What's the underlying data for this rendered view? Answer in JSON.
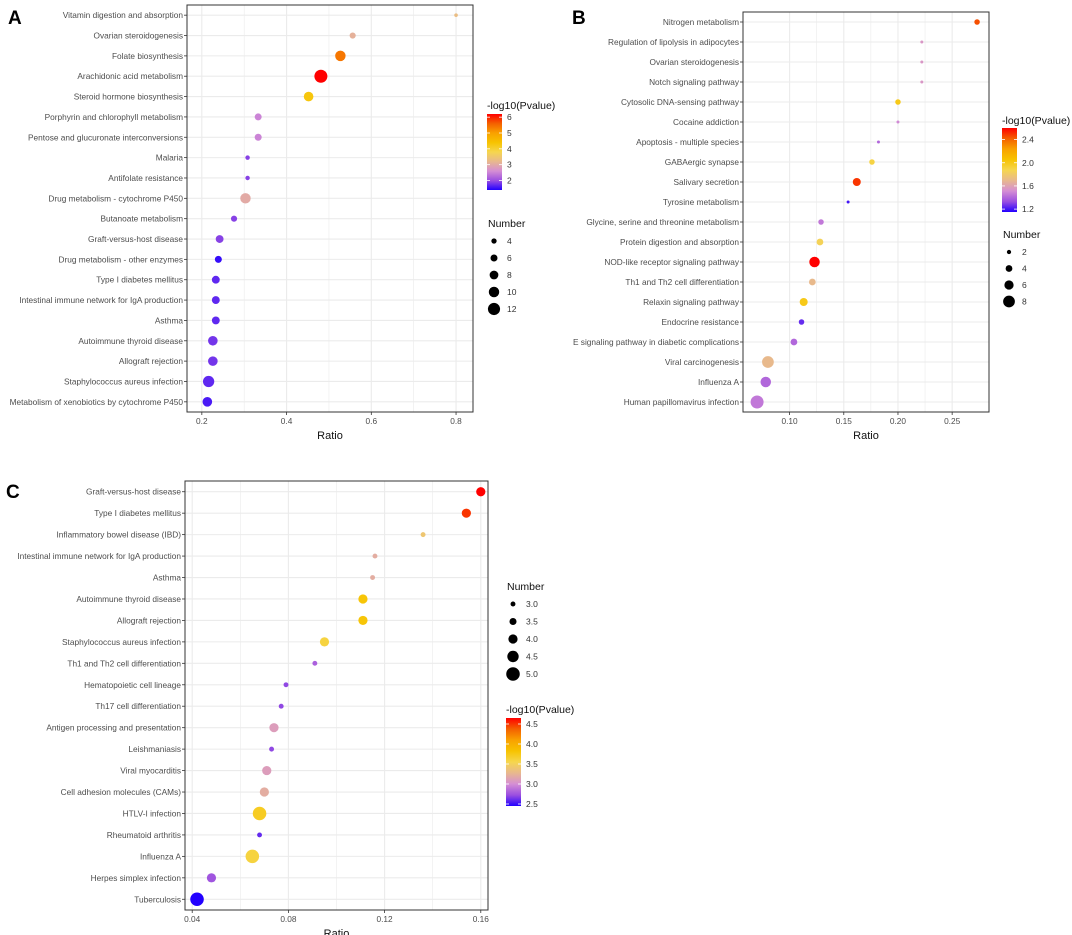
{
  "colors": {
    "scale": [
      "#2200ff",
      "#9b4fe0",
      "#d58ed4",
      "#e8b88e",
      "#f6d64e",
      "#f7c300",
      "#f9a100",
      "#f46000",
      "#ff0000"
    ],
    "grid": "#ebebeb",
    "frame": "#333333"
  },
  "chart_data": [
    {
      "panel": "A",
      "type": "scatter",
      "xlabel": "Ratio",
      "xlim": [
        0.165,
        0.84
      ],
      "xticks": [
        0.2,
        0.4,
        0.6,
        0.8
      ],
      "color_legend": {
        "title": "-log10(Pvalue)",
        "min": 1.4,
        "max": 6.2,
        "ticks": [
          2,
          3,
          4,
          5,
          6
        ]
      },
      "size_legend": {
        "title": "Number",
        "values": [
          4,
          6,
          8,
          10,
          12
        ],
        "min": 2,
        "max": 13
      },
      "points": [
        {
          "term": "Vitamin digestion and absorption",
          "ratio": 0.8,
          "pvalue": 3.3,
          "number": 2
        },
        {
          "term": "Ovarian steroidogenesis",
          "ratio": 0.556,
          "pvalue": 3.1,
          "number": 5
        },
        {
          "term": "Folate biosynthesis",
          "ratio": 0.527,
          "pvalue": 5.4,
          "number": 10
        },
        {
          "term": "Arachidonic acid metabolism",
          "ratio": 0.481,
          "pvalue": 6.2,
          "number": 13
        },
        {
          "term": "Steroid hormone biosynthesis",
          "ratio": 0.452,
          "pvalue": 4.3,
          "number": 9
        },
        {
          "term": "Porphyrin and chlorophyll metabolism",
          "ratio": 0.333,
          "pvalue": 2.5,
          "number": 6
        },
        {
          "term": "Pentose and glucuronate interconversions",
          "ratio": 0.333,
          "pvalue": 2.5,
          "number": 6
        },
        {
          "term": "Malaria",
          "ratio": 0.308,
          "pvalue": 1.9,
          "number": 3
        },
        {
          "term": "Antifolate resistance",
          "ratio": 0.308,
          "pvalue": 1.9,
          "number": 3
        },
        {
          "term": "Drug metabolism - cytochrome P450",
          "ratio": 0.303,
          "pvalue": 3.0,
          "number": 10
        },
        {
          "term": "Butanoate metabolism",
          "ratio": 0.276,
          "pvalue": 1.9,
          "number": 5
        },
        {
          "term": "Graft-versus-host disease",
          "ratio": 0.242,
          "pvalue": 1.9,
          "number": 7
        },
        {
          "term": "Drug metabolism - other enzymes",
          "ratio": 0.239,
          "pvalue": 1.5,
          "number": 6
        },
        {
          "term": "Type I diabetes mellitus",
          "ratio": 0.233,
          "pvalue": 1.7,
          "number": 7
        },
        {
          "term": "Intestinal immune network for IgA production",
          "ratio": 0.233,
          "pvalue": 1.7,
          "number": 7
        },
        {
          "term": "Asthma",
          "ratio": 0.233,
          "pvalue": 1.7,
          "number": 7
        },
        {
          "term": "Autoimmune thyroid disease",
          "ratio": 0.226,
          "pvalue": 1.8,
          "number": 9
        },
        {
          "term": "Allograft rejection",
          "ratio": 0.226,
          "pvalue": 1.8,
          "number": 9
        },
        {
          "term": "Staphylococcus aureus infection",
          "ratio": 0.216,
          "pvalue": 1.7,
          "number": 11
        },
        {
          "term": "Metabolism of xenobiotics by cytochrome P450",
          "ratio": 0.213,
          "pvalue": 1.6,
          "number": 9
        }
      ]
    },
    {
      "panel": "B",
      "type": "scatter",
      "xlabel": "Ratio",
      "xlim": [
        0.057,
        0.284
      ],
      "xticks": [
        0.1,
        0.15,
        0.2,
        0.25
      ],
      "xtick_labels": [
        "0.10",
        "0.15",
        "0.20",
        "0.25"
      ],
      "color_legend": {
        "title": "-log10(Pvalue)",
        "min": 1.15,
        "max": 2.6,
        "ticks": [
          1.2,
          1.6,
          2.0,
          2.4
        ],
        "tick_labels": [
          "1.2",
          "1.6",
          "2.0",
          "2.4"
        ]
      },
      "size_legend": {
        "title": "Number",
        "values": [
          2,
          4,
          6,
          8
        ],
        "min": 1,
        "max": 9
      },
      "points": [
        {
          "term": "Nitrogen metabolism",
          "ratio": 0.273,
          "pvalue": 2.45,
          "number": 3
        },
        {
          "term": "Regulation of lipolysis in adipocytes",
          "ratio": 0.222,
          "pvalue": 1.55,
          "number": 1
        },
        {
          "term": "Ovarian steroidogenesis",
          "ratio": 0.222,
          "pvalue": 1.55,
          "number": 1
        },
        {
          "term": "Notch signaling pathway",
          "ratio": 0.222,
          "pvalue": 1.55,
          "number": 1
        },
        {
          "term": "Cytosolic DNA-sensing pathway",
          "ratio": 0.2,
          "pvalue": 2.0,
          "number": 3
        },
        {
          "term": "Cocaine addiction",
          "ratio": 0.2,
          "pvalue": 1.5,
          "number": 1
        },
        {
          "term": "Apoptosis - multiple species",
          "ratio": 0.182,
          "pvalue": 1.4,
          "number": 1
        },
        {
          "term": "GABAergic synapse",
          "ratio": 0.176,
          "pvalue": 1.9,
          "number": 3
        },
        {
          "term": "Salivary secretion",
          "ratio": 0.162,
          "pvalue": 2.5,
          "number": 5
        },
        {
          "term": "Tyrosine metabolism",
          "ratio": 0.154,
          "pvalue": 1.2,
          "number": 1
        },
        {
          "term": "Glycine, serine and threonine metabolism",
          "ratio": 0.129,
          "pvalue": 1.45,
          "number": 3
        },
        {
          "term": "Protein digestion and absorption",
          "ratio": 0.128,
          "pvalue": 1.85,
          "number": 4
        },
        {
          "term": "NOD-like receptor signaling pathway",
          "ratio": 0.123,
          "pvalue": 2.6,
          "number": 7
        },
        {
          "term": "Th1 and Th2 cell differentiation",
          "ratio": 0.121,
          "pvalue": 1.7,
          "number": 4
        },
        {
          "term": "Relaxin signaling pathway",
          "ratio": 0.113,
          "pvalue": 2.0,
          "number": 5
        },
        {
          "term": "Endocrine resistance",
          "ratio": 0.111,
          "pvalue": 1.25,
          "number": 3
        },
        {
          "term": "E signaling pathway in diabetic complications",
          "ratio": 0.104,
          "pvalue": 1.4,
          "number": 4
        },
        {
          "term": "Viral carcinogenesis",
          "ratio": 0.08,
          "pvalue": 1.7,
          "number": 8
        },
        {
          "term": "Influenza A",
          "ratio": 0.078,
          "pvalue": 1.4,
          "number": 7
        },
        {
          "term": "Human papillomavirus infection",
          "ratio": 0.07,
          "pvalue": 1.45,
          "number": 9
        }
      ]
    },
    {
      "panel": "C",
      "type": "scatter",
      "xlabel": "Ratio",
      "xlim": [
        0.037,
        0.163
      ],
      "xticks": [
        0.04,
        0.08,
        0.12,
        0.16
      ],
      "color_legend": {
        "title": "-log10(Pvalue)",
        "min": 2.45,
        "max": 4.65,
        "ticks": [
          2.5,
          3.0,
          3.5,
          4.0,
          4.5
        ],
        "tick_labels": [
          "2.5",
          "3.0",
          "3.5",
          "4.0",
          "4.5"
        ]
      },
      "size_legend": {
        "title": "Number",
        "values": [
          3.0,
          3.5,
          4.0,
          4.5,
          5.0
        ],
        "tick_labels": [
          "3.0",
          "3.5",
          "4.0",
          "4.5",
          "5.0"
        ],
        "min": 2.7,
        "max": 5.2
      },
      "points": [
        {
          "term": "Graft-versus-host disease",
          "ratio": 0.16,
          "pvalue": 4.65,
          "number": 4
        },
        {
          "term": "Type I diabetes mellitus",
          "ratio": 0.154,
          "pvalue": 4.5,
          "number": 4
        },
        {
          "term": "Inflammatory bowel disease (IBD)",
          "ratio": 0.136,
          "pvalue": 3.4,
          "number": 3
        },
        {
          "term": "Intestinal immune network for IgA production",
          "ratio": 0.116,
          "pvalue": 3.2,
          "number": 3
        },
        {
          "term": "Asthma",
          "ratio": 0.115,
          "pvalue": 3.2,
          "number": 3
        },
        {
          "term": "Autoimmune thyroid disease",
          "ratio": 0.111,
          "pvalue": 3.8,
          "number": 4
        },
        {
          "term": "Allograft rejection",
          "ratio": 0.111,
          "pvalue": 3.8,
          "number": 4
        },
        {
          "term": "Staphylococcus aureus infection",
          "ratio": 0.095,
          "pvalue": 3.6,
          "number": 4
        },
        {
          "term": "Th1 and Th2 cell differentiation",
          "ratio": 0.091,
          "pvalue": 2.8,
          "number": 3
        },
        {
          "term": "Hematopoietic cell lineage",
          "ratio": 0.079,
          "pvalue": 2.7,
          "number": 3
        },
        {
          "term": "Th17 cell differentiation",
          "ratio": 0.077,
          "pvalue": 2.7,
          "number": 3
        },
        {
          "term": "Antigen processing and presentation",
          "ratio": 0.074,
          "pvalue": 3.1,
          "number": 4
        },
        {
          "term": "Leishmaniasis",
          "ratio": 0.073,
          "pvalue": 2.7,
          "number": 3
        },
        {
          "term": "Viral myocarditis",
          "ratio": 0.071,
          "pvalue": 3.1,
          "number": 4
        },
        {
          "term": "Cell adhesion molecules (CAMs)",
          "ratio": 0.07,
          "pvalue": 3.2,
          "number": 4
        },
        {
          "term": "HTLV-I infection",
          "ratio": 0.068,
          "pvalue": 3.7,
          "number": 5
        },
        {
          "term": "Rheumatoid arthritis",
          "ratio": 0.068,
          "pvalue": 2.6,
          "number": 3
        },
        {
          "term": "Influenza A",
          "ratio": 0.065,
          "pvalue": 3.6,
          "number": 5
        },
        {
          "term": "Herpes simplex infection",
          "ratio": 0.048,
          "pvalue": 2.75,
          "number": 4
        },
        {
          "term": "Tuberculosis",
          "ratio": 0.042,
          "pvalue": 2.45,
          "number": 5
        }
      ]
    }
  ]
}
